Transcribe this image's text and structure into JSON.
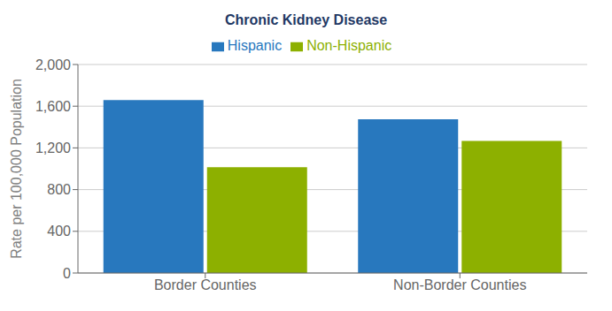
{
  "chart_data": {
    "type": "bar",
    "title": "Chronic Kidney Disease",
    "ylabel": "Rate per 100,000 Population",
    "categories": [
      "Border Counties",
      "Non-Border Counties"
    ],
    "series": [
      {
        "name": "Hispanic",
        "color": "#2878BE",
        "values": [
          1658,
          1475
        ]
      },
      {
        "name": "Non-Hispanic",
        "color": "#8DB000",
        "values": [
          1015,
          1268
        ]
      }
    ],
    "ylim": [
      0,
      2000
    ],
    "yticks": [
      0,
      400,
      800,
      {
        "value": 1200,
        "label": "1,200"
      },
      {
        "value": 1600,
        "label": "1,600"
      },
      {
        "value": 2000,
        "label": "2,000"
      }
    ],
    "grid": true,
    "legend": "top"
  }
}
